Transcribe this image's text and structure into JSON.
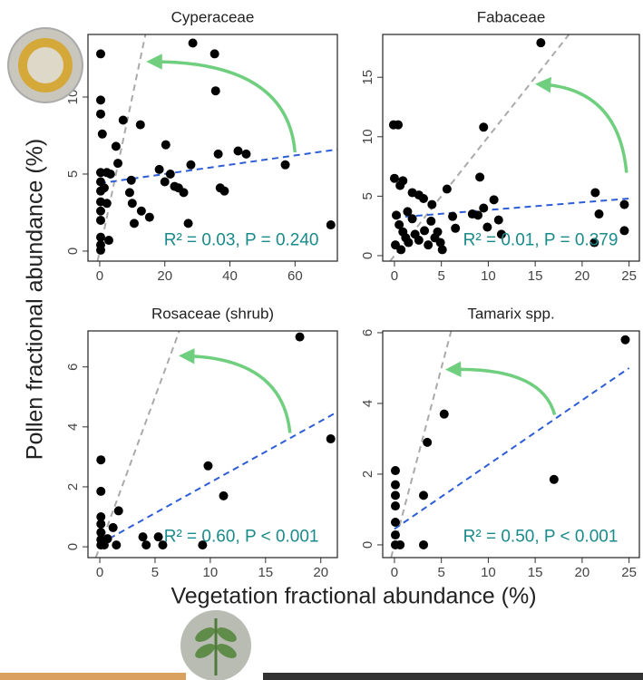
{
  "chart_data": [
    {
      "type": "scatter",
      "title": "Cyperaceae",
      "color": "#000000",
      "x": [
        0.3,
        0.3,
        0.3,
        0.8,
        5,
        7.2,
        12.5,
        28.6,
        35.3,
        35.6,
        20.3,
        5.6,
        18.3,
        28,
        36.4,
        42.5,
        45,
        57,
        71,
        27.2,
        0.3,
        0.3,
        0.3,
        0.3,
        0.3,
        0.3,
        0.3,
        0.3,
        2.2,
        3.3,
        1.4,
        2.2,
        9.7,
        9.2,
        10,
        10.6,
        12.8,
        15.3,
        20,
        21.7,
        23,
        24.2,
        25.8,
        37,
        38.3,
        0.3,
        2.8
      ],
      "values": [
        12.8,
        9.8,
        8.9,
        7.6,
        6.8,
        8.5,
        8.2,
        13.5,
        12.8,
        10.4,
        6.9,
        5.7,
        5.3,
        5.6,
        6.3,
        6.5,
        6.3,
        5.6,
        1.7,
        1.8,
        5.1,
        4.5,
        3.9,
        3.2,
        2.6,
        2.0,
        0.9,
        0.06,
        5.1,
        5.0,
        4.1,
        3.1,
        4.6,
        3.8,
        3.1,
        1.8,
        2.6,
        2.2,
        4.5,
        5.0,
        4.2,
        4.1,
        3.8,
        4.1,
        3.9,
        0.4,
        0.7
      ],
      "trend_line": {
        "x": [
          0,
          73
        ],
        "values": [
          4.4,
          6.6
        ],
        "color": "#2e5ed6"
      },
      "annotation": "R² = 0.03, P = 0.240",
      "xlim": [
        -3.6,
        73
      ],
      "ylim": [
        -0.65,
        14.06
      ],
      "xticks": [
        0,
        20,
        40,
        60
      ],
      "yticks": [
        0,
        5,
        10
      ]
    },
    {
      "type": "scatter",
      "title": "Fabaceae",
      "color": "#000000",
      "x": [
        15.6,
        -0.1,
        0.4,
        9.5,
        0,
        0.9,
        0.6,
        9.1,
        5.6,
        1.9,
        2.6,
        3.1,
        4.0,
        10.6,
        21.4,
        21.8,
        24.5,
        24.5,
        21.3,
        8.3,
        9.5,
        8.9,
        11.1,
        11.4,
        9.9,
        6.2,
        6.5,
        4.6,
        3.9,
        0.2,
        0.5,
        0.9,
        1.2,
        1.5,
        0.1,
        0.7,
        1.4,
        1.9,
        2.2,
        2.6,
        3.2,
        3.6,
        4.3,
        5.1,
        4.9
      ],
      "values": [
        17.9,
        11.0,
        11.0,
        10.8,
        6.5,
        6.3,
        5.9,
        6.6,
        5.6,
        5.3,
        5.1,
        4.8,
        4.3,
        4.7,
        5.3,
        3.5,
        4.3,
        2.1,
        1.1,
        3.5,
        4.0,
        3.4,
        3.0,
        1.8,
        2.4,
        3.3,
        2.3,
        2.0,
        2.9,
        3.4,
        2.6,
        2.0,
        1.5,
        1.1,
        0.9,
        0.5,
        3.7,
        3.1,
        1.8,
        1.3,
        2.1,
        0.9,
        1.5,
        0.5,
        1.1
      ],
      "trend_line": {
        "x": [
          0,
          25
        ],
        "values": [
          3.2,
          4.8
        ],
        "color": "#2e5ed6"
      },
      "annotation": "R² = 0.01, P = 0.379",
      "xlim": [
        -1.25,
        26.1
      ],
      "ylim": [
        -0.46,
        18.6
      ],
      "xticks": [
        0,
        5,
        10,
        15,
        20,
        25
      ],
      "yticks": [
        0,
        5,
        10,
        15
      ]
    },
    {
      "type": "scatter",
      "title": "Rosaceae (shrub)",
      "color": "#000000",
      "x": [
        18.1,
        20.9,
        9.8,
        11.2,
        0.1,
        0.1,
        0.1,
        0.1,
        0.1,
        0.1,
        0.1,
        1.7,
        1.2,
        0.7,
        0.4,
        1.5,
        3.9,
        5.3,
        4.2,
        5.7,
        9.3
      ],
      "values": [
        7.0,
        3.6,
        2.7,
        1.7,
        2.9,
        1.85,
        1.0,
        0.76,
        0.48,
        0.24,
        0.06,
        1.2,
        0.64,
        0.27,
        0.06,
        0.06,
        0.33,
        0.33,
        0.06,
        0.06,
        0.06
      ],
      "trend_line": {
        "x": [
          0,
          21.5
        ],
        "values": [
          0.1,
          4.5
        ],
        "color": "#2e5ed6"
      },
      "annotation": "R² = 0.60, P < 0.001",
      "xlim": [
        -1.07,
        21.5
      ],
      "ylim": [
        -0.36,
        7.2
      ],
      "xticks": [
        0,
        5,
        10,
        15,
        20
      ],
      "yticks": [
        0,
        2,
        4,
        6
      ]
    },
    {
      "type": "scatter",
      "title": "Tamarix spp.",
      "color": "#000000",
      "x": [
        24.6,
        17,
        5.3,
        3.5,
        3.1,
        3.1,
        0.1,
        0.1,
        0.1,
        0.1,
        0.1,
        0.1,
        0.6,
        0.1
      ],
      "values": [
        5.8,
        1.85,
        3.7,
        2.9,
        1.4,
        0,
        2.1,
        1.7,
        1.4,
        1.1,
        0.64,
        0.28,
        0,
        0
      ],
      "trend_line": {
        "x": [
          0,
          25
        ],
        "values": [
          0.45,
          5.0
        ],
        "color": "#2e5ed6"
      },
      "annotation": "R² = 0.50, P < 0.001",
      "xlim": [
        -1.25,
        26.1
      ],
      "ylim": [
        -0.36,
        6.05
      ],
      "xticks": [
        0,
        5,
        10,
        15,
        20,
        25
      ],
      "yticks": [
        0,
        2,
        4,
        6
      ]
    }
  ],
  "axis_labels": {
    "x": "Vegetation fractional abundance (%)",
    "y": "Pollen fractional abundance (%)"
  }
}
